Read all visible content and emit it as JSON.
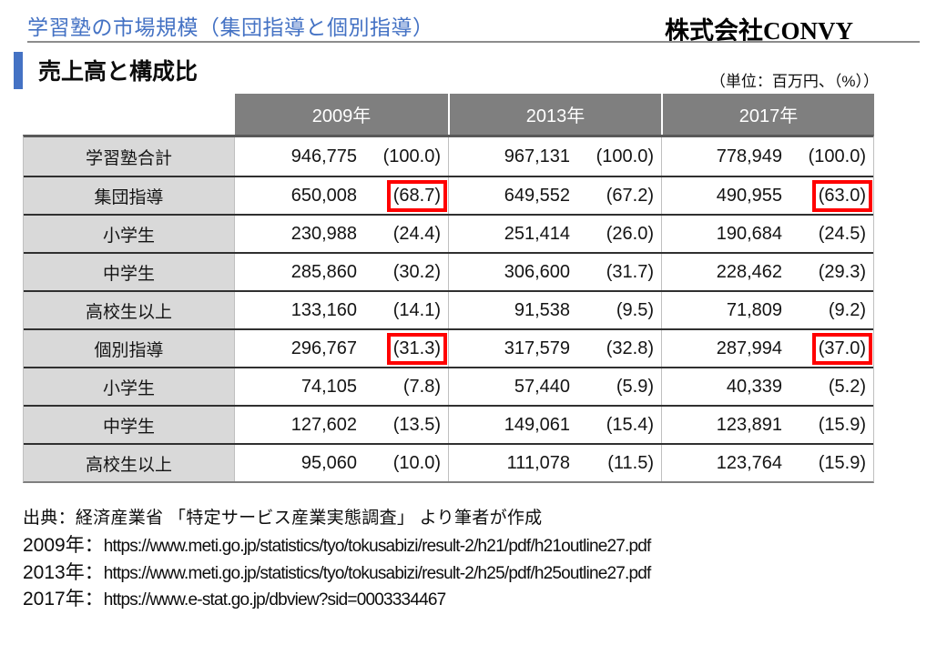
{
  "page": {
    "title": "学習塾の市場規模（集団指導と個別指導）",
    "company": "株式会社CONVY",
    "section_title": "売上高と構成比",
    "unit_note": "（単位：百万円、（%））"
  },
  "table": {
    "columns": [
      "2009年",
      "2013年",
      "2017年"
    ],
    "rows": [
      {
        "label": "学習塾合計",
        "cells": [
          {
            "value": "946,775",
            "pct": "(100.0)",
            "highlight": false
          },
          {
            "value": "967,131",
            "pct": "(100.0)",
            "highlight": false
          },
          {
            "value": "778,949",
            "pct": "(100.0)",
            "highlight": false
          }
        ]
      },
      {
        "label": "集団指導",
        "cells": [
          {
            "value": "650,008",
            "pct": "(68.7)",
            "highlight": true
          },
          {
            "value": "649,552",
            "pct": "(67.2)",
            "highlight": false
          },
          {
            "value": "490,955",
            "pct": "(63.0)",
            "highlight": true
          }
        ]
      },
      {
        "label": "小学生",
        "cells": [
          {
            "value": "230,988",
            "pct": "(24.4)",
            "highlight": false
          },
          {
            "value": "251,414",
            "pct": "(26.0)",
            "highlight": false
          },
          {
            "value": "190,684",
            "pct": "(24.5)",
            "highlight": false
          }
        ]
      },
      {
        "label": "中学生",
        "cells": [
          {
            "value": "285,860",
            "pct": "(30.2)",
            "highlight": false
          },
          {
            "value": "306,600",
            "pct": "(31.7)",
            "highlight": false
          },
          {
            "value": "228,462",
            "pct": "(29.3)",
            "highlight": false
          }
        ]
      },
      {
        "label": "高校生以上",
        "cells": [
          {
            "value": "133,160",
            "pct": "(14.1)",
            "highlight": false
          },
          {
            "value": "91,538",
            "pct": "(9.5)",
            "highlight": false
          },
          {
            "value": "71,809",
            "pct": "(9.2)",
            "highlight": false
          }
        ]
      },
      {
        "label": "個別指導",
        "cells": [
          {
            "value": "296,767",
            "pct": "(31.3)",
            "highlight": true
          },
          {
            "value": "317,579",
            "pct": "(32.8)",
            "highlight": false
          },
          {
            "value": "287,994",
            "pct": "(37.0)",
            "highlight": true
          }
        ]
      },
      {
        "label": "小学生",
        "cells": [
          {
            "value": "74,105",
            "pct": "(7.8)",
            "highlight": false
          },
          {
            "value": "57,440",
            "pct": "(5.9)",
            "highlight": false
          },
          {
            "value": "40,339",
            "pct": "(5.2)",
            "highlight": false
          }
        ]
      },
      {
        "label": "中学生",
        "cells": [
          {
            "value": "127,602",
            "pct": "(13.5)",
            "highlight": false
          },
          {
            "value": "149,061",
            "pct": "(15.4)",
            "highlight": false
          },
          {
            "value": "123,891",
            "pct": "(15.9)",
            "highlight": false
          }
        ]
      },
      {
        "label": "高校生以上",
        "cells": [
          {
            "value": "95,060",
            "pct": "(10.0)",
            "highlight": false
          },
          {
            "value": "111,078",
            "pct": "(11.5)",
            "highlight": false
          },
          {
            "value": "123,764",
            "pct": "(15.9)",
            "highlight": false
          }
        ]
      }
    ]
  },
  "footer": {
    "source": "出典：経済産業省 「特定サービス産業実態調査」 より筆者が作成",
    "links": [
      {
        "year": "2009年：",
        "url": "https://www.meti.go.jp/statistics/tyo/tokusabizi/result-2/h21/pdf/h21outline27.pdf"
      },
      {
        "year": "2013年：",
        "url": "https://www.meti.go.jp/statistics/tyo/tokusabizi/result-2/h25/pdf/h25outline27.pdf"
      },
      {
        "year": "2017年：",
        "url": "https://www.e-stat.go.jp/dbview?sid=0003334467"
      }
    ]
  },
  "colors": {
    "accent_blue": "#4472c4",
    "header_gray": "#7f7f7f",
    "label_gray": "#d9d9d9",
    "highlight_red": "#ff0000"
  }
}
